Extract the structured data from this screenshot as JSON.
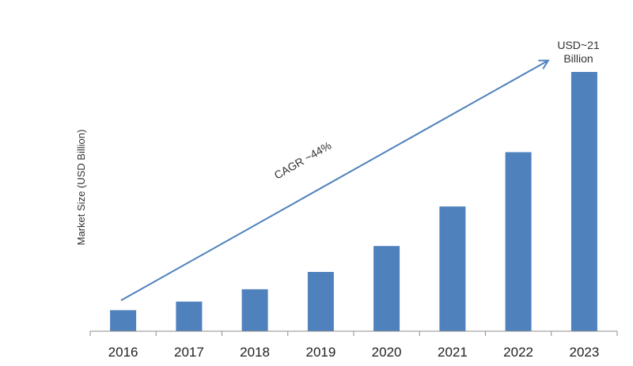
{
  "chart_data": {
    "type": "bar",
    "title": "",
    "xlabel": "",
    "ylabel": "Market Size (USD Billion)",
    "categories": [
      "2016",
      "2017",
      "2018",
      "2019",
      "2020",
      "2021",
      "2022",
      "2023"
    ],
    "values": [
      1.7,
      2.4,
      3.4,
      4.8,
      6.9,
      10.1,
      14.5,
      21.0
    ],
    "ylim": [
      0,
      21
    ],
    "grid": false,
    "legend": null,
    "annotations": [
      {
        "text": "CAGR ~44%",
        "type": "trend-arrow",
        "from": "2016",
        "to": "2023"
      },
      {
        "text_lines": [
          "USD~21",
          "Billion"
        ],
        "target": "2023"
      }
    ],
    "colors": {
      "bar": "#4f81bd",
      "arrow": "#4f81bd"
    }
  },
  "labels": {
    "ylabel": "Market Size (USD Billion)",
    "cagr": "CAGR ~44%",
    "end_value_line1": "USD~21",
    "end_value_line2": "Billion"
  }
}
